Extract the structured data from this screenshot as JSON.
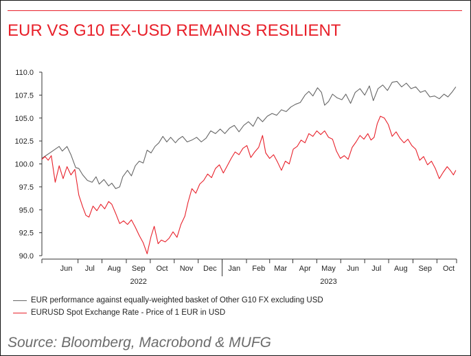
{
  "title": "EUR VS G10 EX-USD REMAINS RESILIENT",
  "source": "Source: Bloomberg, Macrobond & MUFG",
  "colors": {
    "accent": "#e8202a",
    "grey_series": "#666666",
    "red_series": "#e8202a"
  },
  "chart_data": {
    "type": "line",
    "x_type": "date",
    "x_range": [
      "2022-05-15",
      "2023-10-25"
    ],
    "ylim": [
      90.0,
      110.0
    ],
    "yticks": [
      "90.0",
      "92.5",
      "95.0",
      "97.5",
      "100.0",
      "102.5",
      "105.0",
      "107.5",
      "110.0"
    ],
    "ytick_values": [
      90.0,
      92.5,
      95.0,
      97.5,
      100.0,
      102.5,
      105.0,
      107.5,
      110.0
    ],
    "x_month_ticks": [
      {
        "label": "Jun",
        "date": "2022-06-15"
      },
      {
        "label": "Jul",
        "date": "2022-07-15"
      },
      {
        "label": "Aug",
        "date": "2022-08-15"
      },
      {
        "label": "Sep",
        "date": "2022-09-15"
      },
      {
        "label": "Oct",
        "date": "2022-10-15"
      },
      {
        "label": "Nov",
        "date": "2022-11-15"
      },
      {
        "label": "Dec",
        "date": "2022-12-15"
      },
      {
        "label": "Jan",
        "date": "2023-01-15"
      },
      {
        "label": "Feb",
        "date": "2023-02-15"
      },
      {
        "label": "Mar",
        "date": "2023-03-15"
      },
      {
        "label": "Apr",
        "date": "2023-04-15"
      },
      {
        "label": "May",
        "date": "2023-05-15"
      },
      {
        "label": "Jun",
        "date": "2023-06-15"
      },
      {
        "label": "Jul",
        "date": "2023-07-15"
      },
      {
        "label": "Aug",
        "date": "2023-08-15"
      },
      {
        "label": "Sep",
        "date": "2023-09-15"
      },
      {
        "label": "Oct",
        "date": "2023-10-15"
      }
    ],
    "x_year_labels": [
      {
        "label": "2022",
        "date": "2022-09-15"
      },
      {
        "label": "2023",
        "date": "2023-05-15"
      }
    ],
    "grid": false,
    "legend_position": "bottom",
    "series": [
      {
        "name": "EUR performance against equally-weighted basket of Other G10 FX excluding USD",
        "color": "#666666",
        "points": [
          [
            "2022-05-15",
            100.6
          ],
          [
            "2022-05-20",
            100.9
          ],
          [
            "2022-05-27",
            101.3
          ],
          [
            "2022-06-01",
            101.6
          ],
          [
            "2022-06-06",
            101.9
          ],
          [
            "2022-06-10",
            101.4
          ],
          [
            "2022-06-16",
            101.9
          ],
          [
            "2022-06-21",
            101.0
          ],
          [
            "2022-06-27",
            99.6
          ],
          [
            "2022-07-01",
            99.5
          ],
          [
            "2022-07-06",
            98.8
          ],
          [
            "2022-07-12",
            98.2
          ],
          [
            "2022-07-18",
            98.0
          ],
          [
            "2022-07-23",
            98.6
          ],
          [
            "2022-07-27",
            97.8
          ],
          [
            "2022-08-02",
            98.3
          ],
          [
            "2022-08-08",
            97.6
          ],
          [
            "2022-08-12",
            97.9
          ],
          [
            "2022-08-17",
            97.3
          ],
          [
            "2022-08-22",
            97.5
          ],
          [
            "2022-08-26",
            98.6
          ],
          [
            "2022-09-01",
            99.3
          ],
          [
            "2022-09-06",
            98.7
          ],
          [
            "2022-09-11",
            99.8
          ],
          [
            "2022-09-16",
            100.3
          ],
          [
            "2022-09-21",
            100.1
          ],
          [
            "2022-09-26",
            101.5
          ],
          [
            "2022-10-01",
            101.2
          ],
          [
            "2022-10-06",
            101.9
          ],
          [
            "2022-10-11",
            102.3
          ],
          [
            "2022-10-16",
            103.0
          ],
          [
            "2022-10-21",
            102.4
          ],
          [
            "2022-10-26",
            102.9
          ],
          [
            "2022-11-01",
            102.3
          ],
          [
            "2022-11-05",
            102.7
          ],
          [
            "2022-11-10",
            103.0
          ],
          [
            "2022-11-16",
            102.4
          ],
          [
            "2022-11-22",
            102.6
          ],
          [
            "2022-11-28",
            102.9
          ],
          [
            "2022-12-04",
            102.4
          ],
          [
            "2022-12-10",
            102.8
          ],
          [
            "2022-12-16",
            103.6
          ],
          [
            "2022-12-22",
            103.3
          ],
          [
            "2022-12-28",
            103.8
          ],
          [
            "2023-01-03",
            103.3
          ],
          [
            "2023-01-09",
            103.9
          ],
          [
            "2023-01-15",
            104.2
          ],
          [
            "2023-01-21",
            103.5
          ],
          [
            "2023-01-27",
            104.2
          ],
          [
            "2023-02-02",
            104.6
          ],
          [
            "2023-02-08",
            104.1
          ],
          [
            "2023-02-14",
            105.1
          ],
          [
            "2023-02-20",
            104.6
          ],
          [
            "2023-02-26",
            105.2
          ],
          [
            "2023-03-04",
            105.5
          ],
          [
            "2023-03-10",
            105.3
          ],
          [
            "2023-03-16",
            105.9
          ],
          [
            "2023-03-22",
            105.7
          ],
          [
            "2023-03-28",
            106.2
          ],
          [
            "2023-04-03",
            106.5
          ],
          [
            "2023-04-09",
            106.7
          ],
          [
            "2023-04-15",
            107.5
          ],
          [
            "2023-04-20",
            107.9
          ],
          [
            "2023-04-25",
            107.4
          ],
          [
            "2023-05-01",
            108.3
          ],
          [
            "2023-05-06",
            107.8
          ],
          [
            "2023-05-10",
            106.4
          ],
          [
            "2023-05-15",
            106.8
          ],
          [
            "2023-05-20",
            107.6
          ],
          [
            "2023-05-26",
            107.2
          ],
          [
            "2023-06-01",
            107.0
          ],
          [
            "2023-06-06",
            107.6
          ],
          [
            "2023-06-12",
            106.6
          ],
          [
            "2023-06-18",
            107.8
          ],
          [
            "2023-06-24",
            108.2
          ],
          [
            "2023-06-30",
            107.5
          ],
          [
            "2023-07-06",
            108.5
          ],
          [
            "2023-07-11",
            106.9
          ],
          [
            "2023-07-17",
            108.2
          ],
          [
            "2023-07-23",
            108.6
          ],
          [
            "2023-07-29",
            108.0
          ],
          [
            "2023-08-04",
            108.9
          ],
          [
            "2023-08-10",
            109.0
          ],
          [
            "2023-08-16",
            108.4
          ],
          [
            "2023-08-22",
            108.8
          ],
          [
            "2023-08-28",
            108.2
          ],
          [
            "2023-09-03",
            108.4
          ],
          [
            "2023-09-09",
            107.8
          ],
          [
            "2023-09-15",
            108.0
          ],
          [
            "2023-09-21",
            107.3
          ],
          [
            "2023-09-27",
            107.4
          ],
          [
            "2023-10-03",
            107.1
          ],
          [
            "2023-10-09",
            107.6
          ],
          [
            "2023-10-14",
            107.3
          ],
          [
            "2023-10-19",
            107.8
          ],
          [
            "2023-10-24",
            108.4
          ]
        ]
      },
      {
        "name": "EURUSD Spot Exchange Rate - Price of 1 EUR in USD",
        "color": "#e8202a",
        "points": [
          [
            "2022-05-15",
            100.5
          ],
          [
            "2022-05-19",
            100.8
          ],
          [
            "2022-05-23",
            100.4
          ],
          [
            "2022-05-27",
            100.9
          ],
          [
            "2022-06-01",
            98.0
          ],
          [
            "2022-06-06",
            99.8
          ],
          [
            "2022-06-11",
            98.4
          ],
          [
            "2022-06-16",
            99.7
          ],
          [
            "2022-06-21",
            98.8
          ],
          [
            "2022-06-26",
            99.4
          ],
          [
            "2022-07-01",
            96.6
          ],
          [
            "2022-07-06",
            95.3
          ],
          [
            "2022-07-10",
            94.4
          ],
          [
            "2022-07-14",
            94.2
          ],
          [
            "2022-07-19",
            95.4
          ],
          [
            "2022-07-24",
            94.9
          ],
          [
            "2022-07-29",
            95.6
          ],
          [
            "2022-08-03",
            95.1
          ],
          [
            "2022-08-08",
            95.9
          ],
          [
            "2022-08-12",
            95.6
          ],
          [
            "2022-08-17",
            94.6
          ],
          [
            "2022-08-22",
            93.5
          ],
          [
            "2022-08-27",
            93.8
          ],
          [
            "2022-09-01",
            93.4
          ],
          [
            "2022-09-06",
            93.9
          ],
          [
            "2022-09-11",
            93.1
          ],
          [
            "2022-09-16",
            92.2
          ],
          [
            "2022-09-21",
            91.4
          ],
          [
            "2022-09-26",
            90.2
          ],
          [
            "2022-10-01",
            92.1
          ],
          [
            "2022-10-05",
            93.2
          ],
          [
            "2022-10-10",
            91.3
          ],
          [
            "2022-10-14",
            91.7
          ],
          [
            "2022-10-19",
            91.5
          ],
          [
            "2022-10-24",
            91.9
          ],
          [
            "2022-10-29",
            92.6
          ],
          [
            "2022-11-03",
            92.0
          ],
          [
            "2022-11-08",
            93.4
          ],
          [
            "2022-11-13",
            94.3
          ],
          [
            "2022-11-17",
            95.8
          ],
          [
            "2022-11-22",
            97.3
          ],
          [
            "2022-11-27",
            96.8
          ],
          [
            "2022-12-02",
            97.8
          ],
          [
            "2022-12-07",
            98.2
          ],
          [
            "2022-12-12",
            98.9
          ],
          [
            "2022-12-17",
            98.5
          ],
          [
            "2022-12-22",
            99.5
          ],
          [
            "2022-12-27",
            99.9
          ],
          [
            "2023-01-01",
            99.0
          ],
          [
            "2023-01-06",
            99.8
          ],
          [
            "2023-01-11",
            100.6
          ],
          [
            "2023-01-16",
            101.3
          ],
          [
            "2023-01-21",
            101.0
          ],
          [
            "2023-01-26",
            101.7
          ],
          [
            "2023-01-31",
            102.0
          ],
          [
            "2023-02-05",
            100.7
          ],
          [
            "2023-02-10",
            101.3
          ],
          [
            "2023-02-15",
            101.8
          ],
          [
            "2023-02-20",
            103.1
          ],
          [
            "2023-02-24",
            101.2
          ],
          [
            "2023-03-01",
            100.6
          ],
          [
            "2023-03-06",
            101.0
          ],
          [
            "2023-03-11",
            100.2
          ],
          [
            "2023-03-16",
            99.3
          ],
          [
            "2023-03-21",
            100.3
          ],
          [
            "2023-03-26",
            100.0
          ],
          [
            "2023-03-31",
            101.6
          ],
          [
            "2023-04-05",
            101.9
          ],
          [
            "2023-04-10",
            102.6
          ],
          [
            "2023-04-15",
            102.3
          ],
          [
            "2023-04-20",
            103.3
          ],
          [
            "2023-04-25",
            103.0
          ],
          [
            "2023-04-30",
            103.6
          ],
          [
            "2023-05-05",
            103.2
          ],
          [
            "2023-05-10",
            103.6
          ],
          [
            "2023-05-15",
            102.9
          ],
          [
            "2023-05-20",
            102.7
          ],
          [
            "2023-05-25",
            101.4
          ],
          [
            "2023-05-30",
            100.6
          ],
          [
            "2023-06-04",
            100.9
          ],
          [
            "2023-06-09",
            100.5
          ],
          [
            "2023-06-14",
            101.8
          ],
          [
            "2023-06-19",
            102.4
          ],
          [
            "2023-06-24",
            103.1
          ],
          [
            "2023-06-29",
            102.7
          ],
          [
            "2023-07-04",
            103.3
          ],
          [
            "2023-07-08",
            102.6
          ],
          [
            "2023-07-12",
            102.9
          ],
          [
            "2023-07-16",
            104.4
          ],
          [
            "2023-07-20",
            105.2
          ],
          [
            "2023-07-25",
            105.0
          ],
          [
            "2023-07-30",
            104.3
          ],
          [
            "2023-08-04",
            103.0
          ],
          [
            "2023-08-09",
            103.5
          ],
          [
            "2023-08-14",
            102.8
          ],
          [
            "2023-08-19",
            102.3
          ],
          [
            "2023-08-24",
            102.7
          ],
          [
            "2023-08-29",
            102.0
          ],
          [
            "2023-09-03",
            101.6
          ],
          [
            "2023-09-08",
            100.4
          ],
          [
            "2023-09-13",
            100.8
          ],
          [
            "2023-09-18",
            99.9
          ],
          [
            "2023-09-23",
            100.3
          ],
          [
            "2023-09-28",
            99.5
          ],
          [
            "2023-10-03",
            98.4
          ],
          [
            "2023-10-08",
            99.1
          ],
          [
            "2023-10-13",
            99.7
          ],
          [
            "2023-10-17",
            99.3
          ],
          [
            "2023-10-21",
            98.8
          ],
          [
            "2023-10-24",
            99.3
          ]
        ]
      }
    ]
  }
}
